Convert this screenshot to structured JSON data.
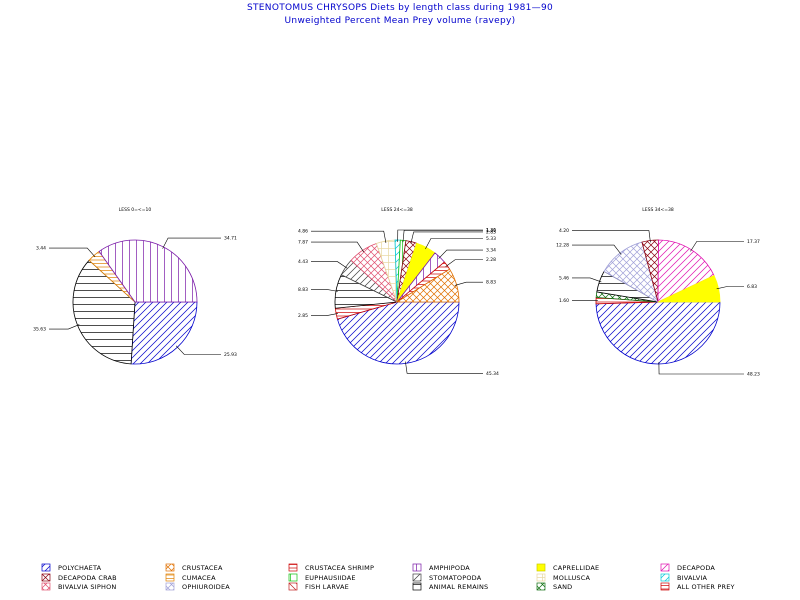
{
  "title": "STENOTOMUS CHRYSOPS Diets by length class during 1981—90",
  "subtitle": "Unweighted Percent Mean Prey volume (ravepy)",
  "categories": [
    {
      "name": "POLYCHAETA",
      "color": "#0000cc",
      "pattern": "diag"
    },
    {
      "name": "CRUSTACEA",
      "color": "#e07000",
      "pattern": "cross"
    },
    {
      "name": "CRUSTACEA SHRIMP",
      "color": "#cc0000",
      "pattern": "hbars"
    },
    {
      "name": "AMPHIPODA",
      "color": "#7a1aa8",
      "pattern": "vert"
    },
    {
      "name": "CAPRELLIDAE",
      "color": "#ffff00",
      "pattern": "solid"
    },
    {
      "name": "DECAPODA",
      "color": "#e010b0",
      "pattern": "diag"
    },
    {
      "name": "DECAPODA CRAB",
      "color": "#8b0010",
      "pattern": "cross"
    },
    {
      "name": "CUMACEA",
      "color": "#e08000",
      "pattern": "hbars"
    },
    {
      "name": "EUPHAUSIIDAE",
      "color": "#10c010",
      "pattern": "vert"
    },
    {
      "name": "STOMATOPODA",
      "color": "#404040",
      "pattern": "diag"
    },
    {
      "name": "MOLLUSCA",
      "color": "#e8d8a0",
      "pattern": "grid"
    },
    {
      "name": "BIVALVIA",
      "color": "#00c8d8",
      "pattern": "diag"
    },
    {
      "name": "BIVALVIA SIPHON",
      "color": "#e05070",
      "pattern": "cross"
    },
    {
      "name": "OPHIUROIDEA",
      "color": "#a0a0d8",
      "pattern": "cross"
    },
    {
      "name": "FISH LARVAE",
      "color": "#c02020",
      "pattern": "diag2"
    },
    {
      "name": "ANIMAL REMAINS",
      "color": "#000000",
      "pattern": "hlines"
    },
    {
      "name": "SAND",
      "color": "#107010",
      "pattern": "cross"
    },
    {
      "name": "ALL OTHER PREY",
      "color": "#cc0000",
      "pattern": "hbars"
    }
  ],
  "chart_data": [
    {
      "type": "pie",
      "title": "LESS 0=<=10",
      "slices": [
        {
          "category": "POLYCHAETA",
          "value": 25.93,
          "label": "25.93"
        },
        {
          "category": "ANIMAL REMAINS",
          "value": 35.63,
          "label": "35.63"
        },
        {
          "category": "CUMACEA",
          "value": 3.44,
          "label": "3.44"
        },
        {
          "category": "AMPHIPODA",
          "value": 34.71,
          "label": "34.71"
        }
      ]
    },
    {
      "type": "pie",
      "title": "LESS 24<=38",
      "slices": [
        {
          "category": "POLYCHAETA",
          "value": 45.34,
          "label": "45.34"
        },
        {
          "category": "ALL OTHER PREY",
          "value": 2.85,
          "label": "2.85"
        },
        {
          "category": "ANIMAL REMAINS",
          "value": 8.83,
          "label": "8.83"
        },
        {
          "category": "STOMATOPODA",
          "value": 4.43,
          "label": "4.43"
        },
        {
          "category": "BIVALVIA SIPHON",
          "value": 7.87,
          "label": "7.87"
        },
        {
          "category": "MOLLUSCA",
          "value": 4.86,
          "label": "4.86"
        },
        {
          "category": "BIVALVIA",
          "value": 1.36,
          "label": "1.36"
        },
        {
          "category": "EUPHAUSIIDAE",
          "value": 1.43,
          "label": "1.43"
        },
        {
          "category": "DECAPODA CRAB",
          "value": 2.83,
          "label": "2.83"
        },
        {
          "category": "CAPRELLIDAE",
          "value": 5.33,
          "label": "5.33"
        },
        {
          "category": "AMPHIPODA",
          "value": 3.34,
          "label": "3.34"
        },
        {
          "category": "CRUSTACEA SHRIMP",
          "value": 2.28,
          "label": "2.28"
        },
        {
          "category": "CRUSTACEA",
          "value": 8.83,
          "label": "8.83"
        }
      ]
    },
    {
      "type": "pie",
      "title": "LESS 34<=38",
      "slices": [
        {
          "category": "POLYCHAETA",
          "value": 48.23,
          "label": "48.23"
        },
        {
          "category": "ALL OTHER PREY",
          "value": 1.6,
          "label": "1.60"
        },
        {
          "category": "SAND",
          "value": 1.4,
          "label": ""
        },
        {
          "category": "ANIMAL REMAINS",
          "value": 5.46,
          "label": "5.46"
        },
        {
          "category": "OPHIUROIDEA",
          "value": 12.28,
          "label": "12.28"
        },
        {
          "category": "DECAPODA CRAB",
          "value": 4.2,
          "label": "4.20"
        },
        {
          "category": "DECAPODA",
          "value": 17.37,
          "label": "17.37"
        },
        {
          "category": "CAPRELLIDAE",
          "value": 6.83,
          "label": "6.83"
        }
      ]
    }
  ]
}
